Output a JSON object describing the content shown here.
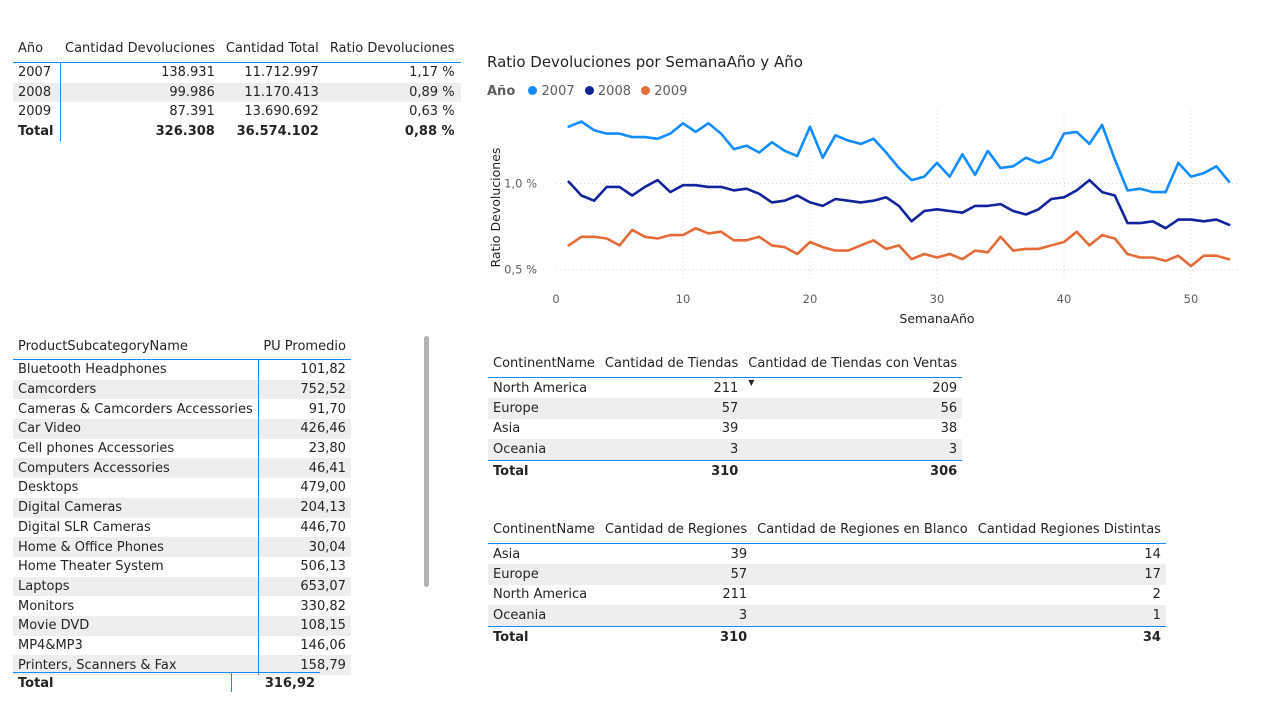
{
  "years_table": {
    "headers": [
      "Año",
      "Cantidad Devoluciones",
      "Cantidad Total",
      "Ratio Devoluciones"
    ],
    "rows": [
      [
        "2007",
        "138.931",
        "11.712.997",
        "1,17 %"
      ],
      [
        "2008",
        "99.986",
        "11.170.413",
        "0,89 %"
      ],
      [
        "2009",
        "87.391",
        "13.690.692",
        "0,63 %"
      ]
    ],
    "total": [
      "Total",
      "326.308",
      "36.574.102",
      "0,88 %"
    ]
  },
  "subcategory_table": {
    "headers": [
      "ProductSubcategoryName",
      "PU Promedio"
    ],
    "rows": [
      [
        "Bluetooth Headphones",
        "101,82"
      ],
      [
        "Camcorders",
        "752,52"
      ],
      [
        "Cameras & Camcorders Accessories",
        "91,70"
      ],
      [
        "Car Video",
        "426,46"
      ],
      [
        "Cell phones Accessories",
        "23,80"
      ],
      [
        "Computers Accessories",
        "46,41"
      ],
      [
        "Desktops",
        "479,00"
      ],
      [
        "Digital Cameras",
        "204,13"
      ],
      [
        "Digital SLR Cameras",
        "446,70"
      ],
      [
        "Home & Office Phones",
        "30,04"
      ],
      [
        "Home Theater System",
        "506,13"
      ],
      [
        "Laptops",
        "653,07"
      ],
      [
        "Monitors",
        "330,82"
      ],
      [
        "Movie DVD",
        "108,15"
      ],
      [
        "MP4&MP3",
        "146,06"
      ],
      [
        "Printers, Scanners & Fax",
        "158,79"
      ]
    ],
    "total": [
      "Total",
      "316,92"
    ]
  },
  "stores_table": {
    "headers": [
      "ContinentName",
      "Cantidad de Tiendas",
      "Cantidad de Tiendas con Ventas"
    ],
    "rows": [
      [
        "North America",
        "211",
        "209"
      ],
      [
        "Europe",
        "57",
        "56"
      ],
      [
        "Asia",
        "39",
        "38"
      ],
      [
        "Oceania",
        "3",
        "3"
      ]
    ],
    "total": [
      "Total",
      "310",
      "306"
    ]
  },
  "regions_table": {
    "headers": [
      "ContinentName",
      "Cantidad de Regiones",
      "Cantidad de Regiones en Blanco",
      "Cantidad Regiones Distintas"
    ],
    "rows": [
      [
        "Asia",
        "39",
        "",
        "14"
      ],
      [
        "Europe",
        "57",
        "",
        "17"
      ],
      [
        "North America",
        "211",
        "",
        "2"
      ],
      [
        "Oceania",
        "3",
        "",
        "1"
      ]
    ],
    "total": [
      "Total",
      "310",
      "",
      "34"
    ]
  },
  "chart": {
    "title": "Ratio Devoluciones por SemanaAño y Año",
    "legend_title": "Año"
  },
  "chart_data": {
    "type": "line",
    "title": "Ratio Devoluciones por SemanaAño y Año",
    "xlabel": "SemanaAño",
    "ylabel": "Ratio Devoluciones",
    "xlim": [
      0,
      54
    ],
    "ylim": [
      0.45,
      1.5
    ],
    "x_ticks": [
      0,
      10,
      20,
      30,
      40,
      50
    ],
    "y_ticks": [
      {
        "value": 0.5,
        "label": "0,5 %"
      },
      {
        "value": 1.0,
        "label": "1,0 %"
      }
    ],
    "grid": true,
    "legend_position": "top-left",
    "x": [
      1,
      2,
      3,
      4,
      5,
      6,
      7,
      8,
      9,
      10,
      11,
      12,
      13,
      14,
      15,
      16,
      17,
      18,
      19,
      20,
      21,
      22,
      23,
      24,
      25,
      26,
      27,
      28,
      29,
      30,
      31,
      32,
      33,
      34,
      35,
      36,
      37,
      38,
      39,
      40,
      41,
      42,
      43,
      44,
      45,
      46,
      47,
      48,
      49,
      50,
      51,
      52,
      53
    ],
    "series": [
      {
        "name": "2007",
        "color": "#118dff",
        "values": [
          1.33,
          1.36,
          1.31,
          1.29,
          1.29,
          1.27,
          1.27,
          1.26,
          1.29,
          1.35,
          1.3,
          1.35,
          1.29,
          1.2,
          1.22,
          1.18,
          1.24,
          1.19,
          1.16,
          1.33,
          1.15,
          1.28,
          1.25,
          1.23,
          1.26,
          1.18,
          1.09,
          1.02,
          1.04,
          1.12,
          1.04,
          1.17,
          1.05,
          1.19,
          1.09,
          1.1,
          1.15,
          1.12,
          1.15,
          1.29,
          1.3,
          1.23,
          1.34,
          1.14,
          0.96,
          0.97,
          0.95,
          0.95,
          1.12,
          1.04,
          1.06,
          1.1,
          1.01
        ]
      },
      {
        "name": "2008",
        "color": "#12239e",
        "values": [
          1.01,
          0.93,
          0.9,
          0.98,
          0.98,
          0.93,
          0.98,
          1.02,
          0.95,
          0.99,
          0.99,
          0.98,
          0.98,
          0.96,
          0.97,
          0.94,
          0.89,
          0.9,
          0.93,
          0.89,
          0.87,
          0.91,
          0.9,
          0.89,
          0.9,
          0.92,
          0.87,
          0.78,
          0.84,
          0.85,
          0.84,
          0.83,
          0.87,
          0.87,
          0.88,
          0.84,
          0.82,
          0.85,
          0.91,
          0.92,
          0.96,
          1.02,
          0.95,
          0.93,
          0.77,
          0.77,
          0.78,
          0.74,
          0.79,
          0.79,
          0.78,
          0.79,
          0.76
        ]
      },
      {
        "name": "2009",
        "color": "#e66c37",
        "values": [
          0.64,
          0.69,
          0.69,
          0.68,
          0.64,
          0.73,
          0.69,
          0.68,
          0.7,
          0.7,
          0.74,
          0.71,
          0.72,
          0.67,
          0.67,
          0.69,
          0.64,
          0.63,
          0.59,
          0.66,
          0.63,
          0.61,
          0.61,
          0.64,
          0.67,
          0.62,
          0.64,
          0.56,
          0.59,
          0.57,
          0.59,
          0.56,
          0.61,
          0.6,
          0.69,
          0.61,
          0.62,
          0.62,
          0.64,
          0.66,
          0.72,
          0.64,
          0.7,
          0.68,
          0.59,
          0.57,
          0.57,
          0.55,
          0.58,
          0.52,
          0.58,
          0.58,
          0.56
        ]
      }
    ]
  }
}
